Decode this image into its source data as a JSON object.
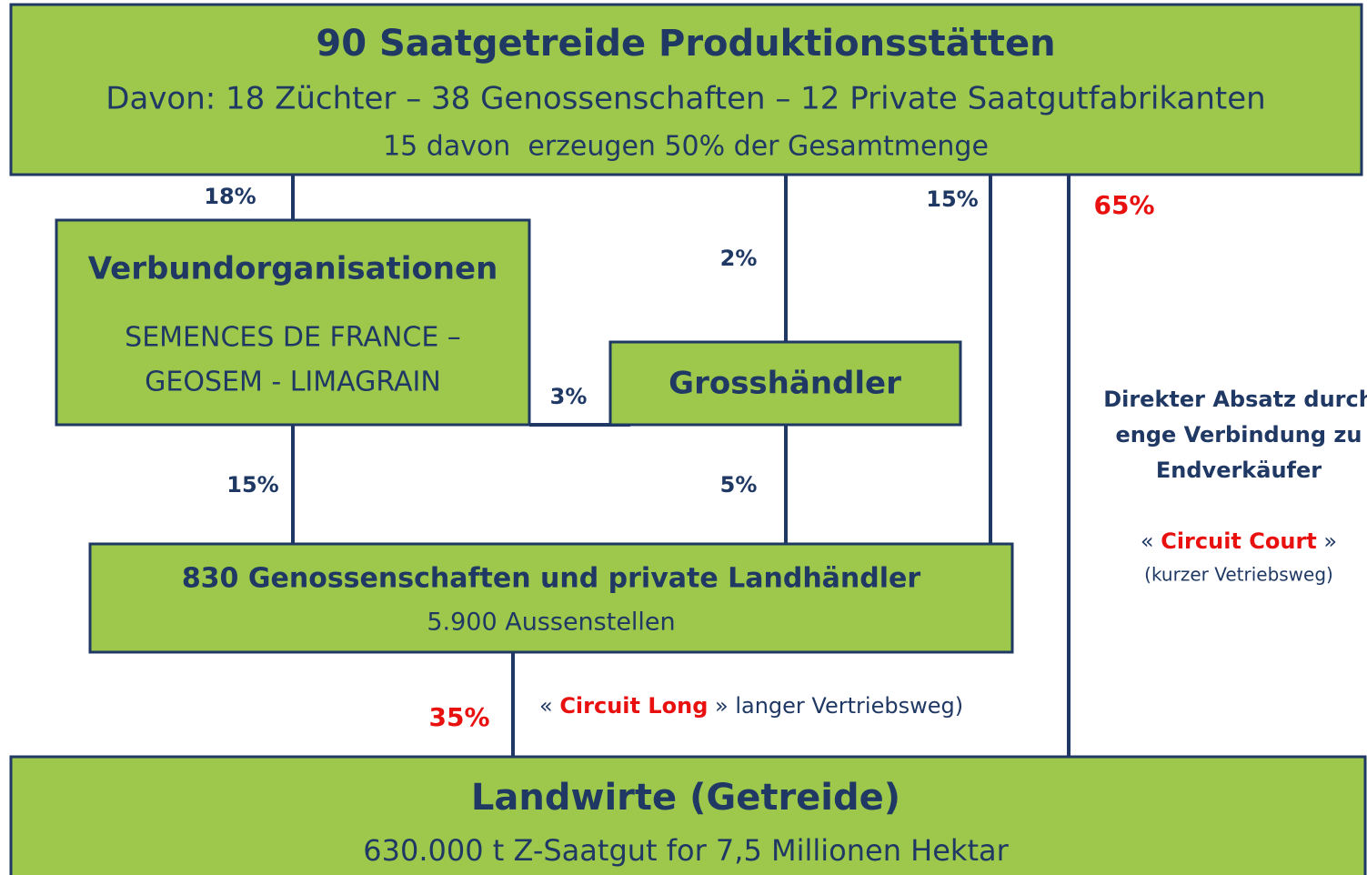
{
  "top_box": {
    "title": "90 Saatgetreide Produktionsstätten",
    "line1": "Davon: 18 Züchter – 38 Genossenschaften – 12 Private Saatgutfabrikanten",
    "line2": "15 davon  erzeugen 50% der Gesamtmenge"
  },
  "verbund_box": {
    "title": "Verbundorganisationen",
    "line1": "SEMENCES DE FRANCE –",
    "line2": "GEOSEM - LIMAGRAIN"
  },
  "grosshandel_box": {
    "title": "Grosshändler"
  },
  "handel_box": {
    "title": "830 Genossenschaften und private Landhändler",
    "line1": "5.900 Aussenstellen"
  },
  "farmer_box": {
    "title": "Landwirte (Getreide)",
    "line1": "630.000 t Z-Saatgut for 7,5 Millionen Hektar"
  },
  "edges": {
    "top_to_verbund": "18%",
    "top_to_grosshandel": "2%",
    "top_to_handel": "15%",
    "top_to_farmer": "65%",
    "verbund_to_grosshandel": "3%",
    "verbund_to_handel": "15%",
    "grosshandel_to_handel": "5%",
    "handel_to_farmer": "35%"
  },
  "circuit_long": {
    "prefix": "« ",
    "highlight": "Circuit Long",
    "suffix": " » langer Vertriebsweg)"
  },
  "direct_note": {
    "lines": [
      "Direkter Absatz durch",
      "enge Verbindung zu",
      "Endverkäufer"
    ],
    "circuit_court": {
      "prefix": "« ",
      "highlight": "Circuit Court",
      "suffix": " »"
    },
    "subtitle": "(kurzer Vetriebsweg)"
  }
}
